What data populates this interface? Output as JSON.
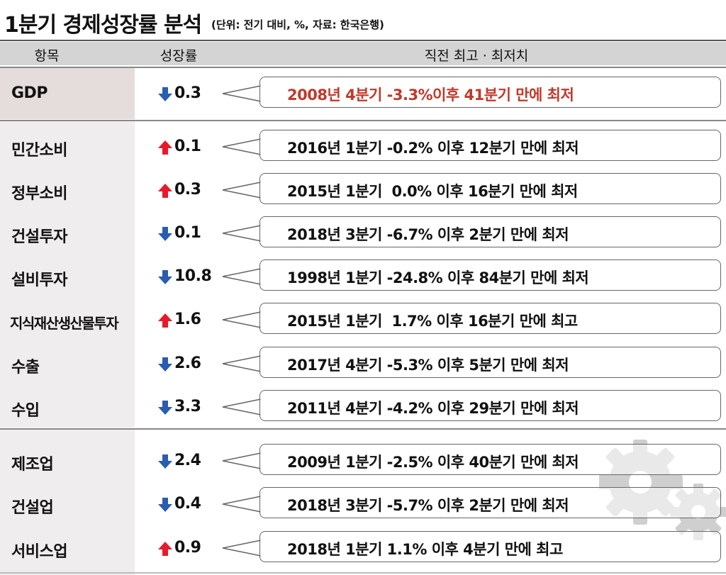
{
  "title": "1분기 경제성장률 분석",
  "unit_note": "(단위: 전기 대비, %, 자료: 한국은행)",
  "headers": {
    "item": "항목",
    "growth": "성장률",
    "record": "직전 최고 · 최저치"
  },
  "colors": {
    "up": "#e8192c",
    "down": "#2a5db0",
    "highlight": "#c0392b"
  },
  "rows": [
    {
      "item": "GDP",
      "dir": "down",
      "value": "0.3",
      "note": "2008년 4분기 -3.3%이후 41분기 만에 최저",
      "highlight": true
    },
    {
      "item": "민간소비",
      "dir": "up",
      "value": "0.1",
      "note": "2016년 1분기 -0.2% 이후 12분기 만에 최저"
    },
    {
      "item": "정부소비",
      "dir": "up",
      "value": "0.3",
      "note": "2015년 1분기  0.0% 이후 16분기 만에 최저"
    },
    {
      "item": "건설투자",
      "dir": "down",
      "value": "0.1",
      "note": "2018년 3분기 -6.7% 이후 2분기 만에 최저"
    },
    {
      "item": "설비투자",
      "dir": "down",
      "value": "10.8",
      "note": "1998년 1분기 -24.8% 이후 84분기 만에 최저"
    },
    {
      "item": "지식재산생산물투자",
      "dir": "up",
      "value": "1.6",
      "note": "2015년 1분기  1.7% 이후 16분기 만에 최고"
    },
    {
      "item": "수출",
      "dir": "down",
      "value": "2.6",
      "note": "2017년 4분기 -5.3% 이후 5분기 만에 최저"
    },
    {
      "item": "수입",
      "dir": "down",
      "value": "3.3",
      "note": "2011년 4분기 -4.2% 이후 29분기 만에 최저"
    },
    {
      "item": "제조업",
      "dir": "down",
      "value": "2.4",
      "note": "2009년 1분기 -2.5% 이후 40분기 만에 최저"
    },
    {
      "item": "건설업",
      "dir": "down",
      "value": "0.4",
      "note": "2018년 3분기 -5.7% 이후 2분기 만에 최저"
    },
    {
      "item": "서비스업",
      "dir": "up",
      "value": "0.9",
      "note": "2018년 1분기 1.1% 이후 4분기 만에 최고"
    }
  ]
}
